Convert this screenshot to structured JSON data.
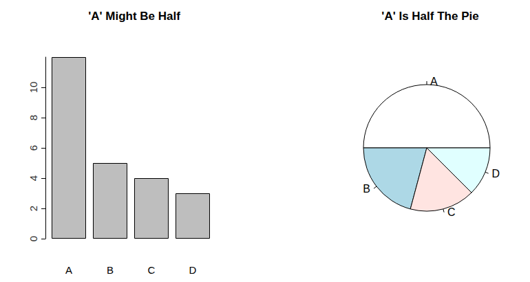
{
  "chart_data": [
    {
      "type": "bar",
      "title": "'A' Might Be Half",
      "categories": [
        "A",
        "B",
        "C",
        "D"
      ],
      "values": [
        12,
        5,
        4,
        3
      ],
      "color": "#bebebe",
      "ylim": [
        0,
        12
      ],
      "yticks": [
        0,
        2,
        4,
        6,
        8,
        10
      ],
      "grid": false
    },
    {
      "type": "pie",
      "title": "'A' Is Half The Pie",
      "categories": [
        "A",
        "B",
        "C",
        "D"
      ],
      "values": [
        12,
        5,
        4,
        3
      ],
      "colors": [
        "#ffffff",
        "#add8e6",
        "#ffe4e1",
        "#e0ffff"
      ]
    }
  ]
}
